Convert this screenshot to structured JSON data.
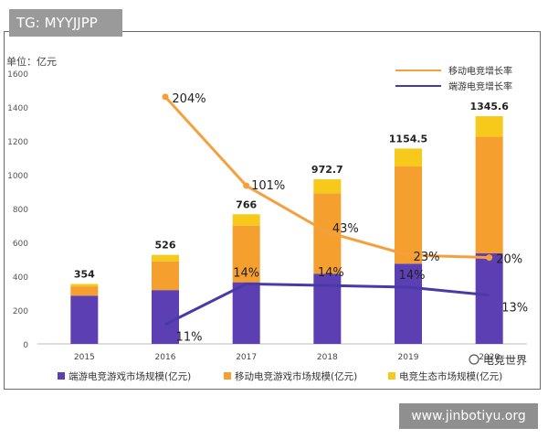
{
  "tag": {
    "text": "TG: MYYJJPP"
  },
  "footer": {
    "url": "www.jinbotiyu.org"
  },
  "watermark": {
    "text": "电竞世界"
  },
  "chart_data": {
    "type": "bar",
    "unit_label": "单位：亿元",
    "categories": [
      "2015",
      "2016",
      "2017",
      "2018",
      "2019",
      "2020"
    ],
    "ylim": [
      0,
      1600
    ],
    "y_ticks": [
      0,
      200,
      400,
      600,
      800,
      1000,
      1200,
      1400,
      1600
    ],
    "grid": false,
    "stacked": true,
    "series": [
      {
        "name": "端游电竞游戏市场规模(亿元)",
        "color": "#5b3fb3",
        "values": [
          285,
          318,
          364,
          415,
          474,
          535
        ]
      },
      {
        "name": "移动电竞游戏市场规模(亿元)",
        "color": "#f59f2f",
        "values": [
          55,
          170,
          335,
          475,
          575,
          690
        ]
      },
      {
        "name": "电竞生态市场规模(亿元)",
        "color": "#f7c91a",
        "values": [
          14,
          38,
          67,
          82.7,
          105.5,
          120.6
        ]
      }
    ],
    "totals": [
      "354",
      "526",
      "766",
      "972.7",
      "1154.5",
      "1345.6"
    ],
    "lines": [
      {
        "name": "移动电竞增长率",
        "color": "#f5a03c",
        "categories": [
          "2016",
          "2017",
          "2018",
          "2019",
          "2020"
        ],
        "values": [
          1460,
          935,
          660,
          525,
          510
        ],
        "labels": [
          "204%",
          "101%",
          "43%",
          "23%",
          "20%"
        ]
      },
      {
        "name": "端游电竞增长率",
        "color": "#4a3aa8",
        "categories": [
          "2016",
          "2017",
          "2018",
          "2019",
          "2020"
        ],
        "values": [
          115,
          355,
          345,
          335,
          288
        ],
        "labels": [
          "11%",
          "14%",
          "14%",
          "14%",
          "13%"
        ]
      }
    ],
    "legend_position": "top-right (lines), bottom (bars)"
  }
}
